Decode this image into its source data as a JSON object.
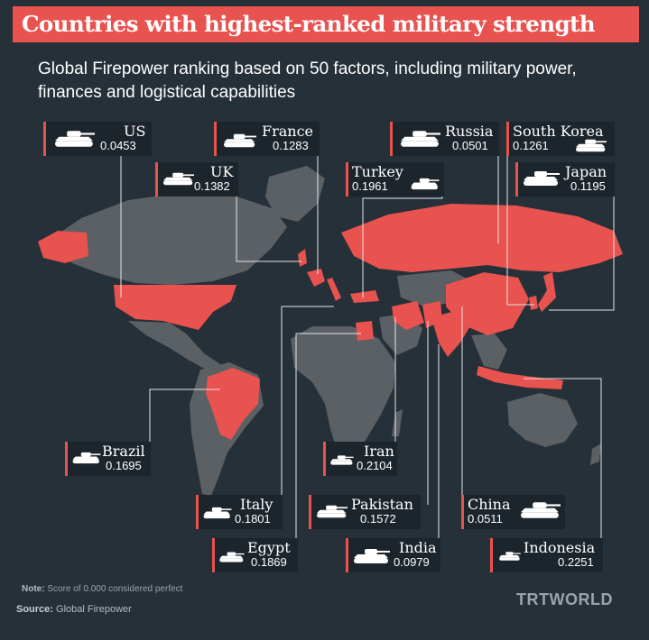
{
  "title": "Countries with highest-ranked military strength",
  "subtitle": "Global Firepower ranking based on 50 factors, including military power, finances and logistical capabilities",
  "countries": [
    {
      "name": "US",
      "score": "0.0453"
    },
    {
      "name": "France",
      "score": "0.1283"
    },
    {
      "name": "Russia",
      "score": "0.0501"
    },
    {
      "name": "South Korea",
      "score": "0.1261"
    },
    {
      "name": "UK",
      "score": "0.1382"
    },
    {
      "name": "Turkey",
      "score": "0.1961"
    },
    {
      "name": "Japan",
      "score": "0.1195"
    },
    {
      "name": "Brazil",
      "score": "0.1695"
    },
    {
      "name": "Iran",
      "score": "0.2104"
    },
    {
      "name": "Italy",
      "score": "0.1801"
    },
    {
      "name": "Pakistan",
      "score": "0.1572"
    },
    {
      "name": "China",
      "score": "0.0511"
    },
    {
      "name": "Egypt",
      "score": "0.1869"
    },
    {
      "name": "India",
      "score": "0.0979"
    },
    {
      "name": "Indonesia",
      "score": "0.2251"
    }
  ],
  "note_label": "Note:",
  "note_text": "Score of 0.000 considered perfect",
  "source_label": "Source:",
  "source_text": "Global Firepower",
  "brand": "TRTWORLD",
  "colors": {
    "background": "#263038",
    "land": "#5b6065",
    "highlight": "#e8524f",
    "label_bg": "#1d252c",
    "text": "#ffffff"
  },
  "icon": "tank-icon"
}
